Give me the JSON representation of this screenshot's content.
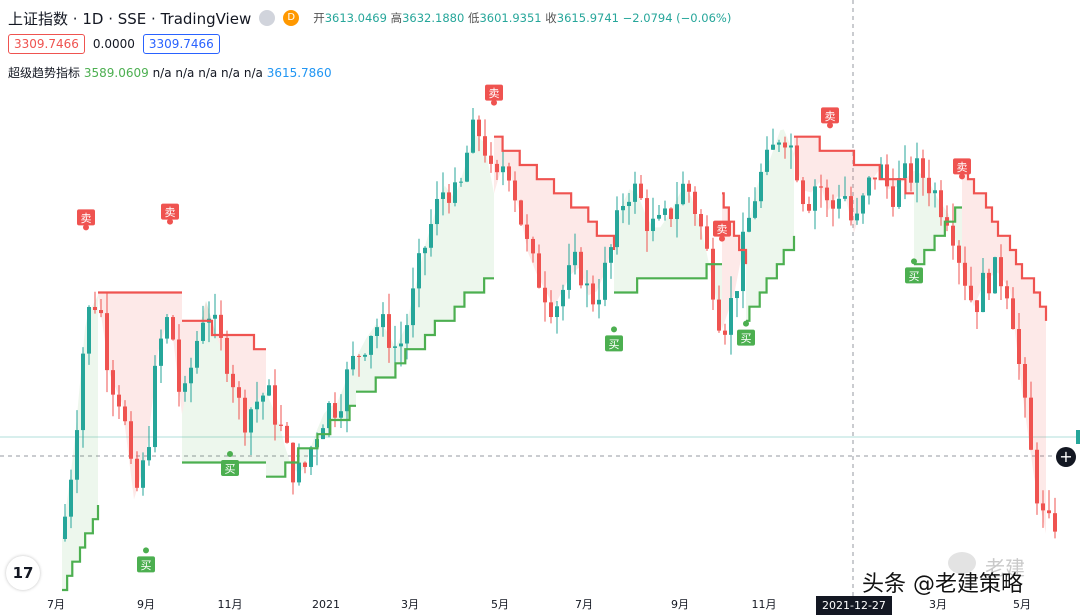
{
  "header": {
    "symbol": "上证指数",
    "interval": "1D",
    "exchange": "SSE",
    "source": "TradingView",
    "badge": "D",
    "open_label": "开",
    "open": "3613.0469",
    "high_label": "高",
    "high": "3632.1880",
    "low_label": "低",
    "low": "3601.9351",
    "close_label": "收",
    "close": "3615.9741",
    "change": "−2.0794 (−0.06%)"
  },
  "quote_row": {
    "bid": "3309.7466",
    "spread": "0.0000",
    "ask": "3309.7466"
  },
  "indicator": {
    "name": "超级趋势指标",
    "value": "3589.0609",
    "na_values": "n/a n/a n/a n/a n/a",
    "last": "3615.7860"
  },
  "crosshair_date": "2021-12-27",
  "logo_text": "17",
  "plus_symbol": "+",
  "watermark": {
    "text": "头条 @老建策略",
    "faded": "老建"
  },
  "colors": {
    "up": "#26a69a",
    "down": "#ef5350",
    "trend_up": "#4caf50",
    "trend_down": "#ef5350",
    "fill_up": "rgba(76,175,80,0.10)",
    "fill_down": "rgba(239,83,80,0.13)"
  },
  "chart_data": {
    "type": "candlestick",
    "x_ticks": [
      "7月",
      "9月",
      "11月",
      "2021",
      "3月",
      "5月",
      "7月",
      "9月",
      "11月",
      "3月",
      "5月"
    ],
    "price_path": [
      [
        0,
        2990
      ],
      [
        2,
        3150
      ],
      [
        4,
        3380
      ],
      [
        6,
        3420
      ],
      [
        8,
        3280
      ],
      [
        10,
        3230
      ],
      [
        12,
        3060
      ],
      [
        14,
        3130
      ],
      [
        16,
        3320
      ],
      [
        18,
        3390
      ],
      [
        20,
        3210
      ],
      [
        22,
        3320
      ],
      [
        24,
        3410
      ],
      [
        26,
        3340
      ],
      [
        28,
        3300
      ],
      [
        30,
        3200
      ],
      [
        32,
        3230
      ],
      [
        34,
        3250
      ],
      [
        36,
        3200
      ],
      [
        38,
        3120
      ],
      [
        40,
        3100
      ],
      [
        42,
        3170
      ],
      [
        44,
        3220
      ],
      [
        46,
        3230
      ],
      [
        48,
        3290
      ],
      [
        50,
        3330
      ],
      [
        52,
        3370
      ],
      [
        54,
        3360
      ],
      [
        56,
        3320
      ],
      [
        58,
        3390
      ],
      [
        60,
        3490
      ],
      [
        62,
        3560
      ],
      [
        64,
        3620
      ],
      [
        66,
        3580
      ],
      [
        68,
        3700
      ],
      [
        70,
        3710
      ],
      [
        72,
        3600
      ],
      [
        74,
        3670
      ],
      [
        76,
        3580
      ],
      [
        78,
        3480
      ],
      [
        80,
        3440
      ],
      [
        82,
        3400
      ],
      [
        84,
        3440
      ],
      [
        86,
        3480
      ],
      [
        88,
        3410
      ],
      [
        90,
        3440
      ],
      [
        92,
        3520
      ],
      [
        94,
        3610
      ],
      [
        96,
        3600
      ],
      [
        98,
        3540
      ],
      [
        100,
        3540
      ],
      [
        102,
        3580
      ],
      [
        104,
        3620
      ],
      [
        106,
        3560
      ],
      [
        108,
        3470
      ],
      [
        110,
        3360
      ],
      [
        112,
        3420
      ],
      [
        114,
        3530
      ],
      [
        116,
        3620
      ],
      [
        118,
        3660
      ],
      [
        120,
        3720
      ],
      [
        122,
        3670
      ],
      [
        124,
        3580
      ],
      [
        126,
        3630
      ],
      [
        128,
        3560
      ],
      [
        130,
        3620
      ],
      [
        132,
        3530
      ],
      [
        134,
        3600
      ],
      [
        136,
        3650
      ],
      [
        138,
        3600
      ],
      [
        140,
        3620
      ],
      [
        142,
        3640
      ],
      [
        144,
        3630
      ],
      [
        146,
        3590
      ],
      [
        148,
        3560
      ],
      [
        150,
        3470
      ],
      [
        152,
        3400
      ],
      [
        154,
        3450
      ],
      [
        156,
        3460
      ],
      [
        158,
        3430
      ],
      [
        160,
        3250
      ],
      [
        162,
        3100
      ],
      [
        164,
        3000
      ],
      [
        166,
        3030
      ]
    ],
    "supertrend": [
      {
        "from": 0,
        "to": 6,
        "dir": "up",
        "values": [
          2900,
          3040
        ]
      },
      {
        "from": 6,
        "to": 20,
        "dir": "down",
        "values": [
          3420,
          3420
        ]
      },
      {
        "from": 20,
        "to": 34,
        "dir": "down",
        "values": [
          3380,
          3330
        ]
      },
      {
        "from": 20,
        "to": 34,
        "dir": "up",
        "values": [
          3120,
          3120
        ]
      },
      {
        "from": 34,
        "to": 49,
        "dir": "up",
        "values": [
          3090,
          3230
        ]
      },
      {
        "from": 49,
        "to": 72,
        "dir": "up",
        "values": [
          3240,
          3460
        ]
      },
      {
        "from": 72,
        "to": 92,
        "dir": "down",
        "values": [
          3700,
          3510
        ]
      },
      {
        "from": 92,
        "to": 110,
        "dir": "up",
        "values": [
          3430,
          3470
        ]
      },
      {
        "from": 110,
        "to": 114,
        "dir": "down",
        "values": [
          3590,
          3480
        ]
      },
      {
        "from": 114,
        "to": 122,
        "dir": "up",
        "values": [
          3380,
          3520
        ]
      },
      {
        "from": 122,
        "to": 142,
        "dir": "down",
        "values": [
          3710,
          3600
        ]
      },
      {
        "from": 142,
        "to": 150,
        "dir": "up",
        "values": [
          3470,
          3580
        ]
      },
      {
        "from": 150,
        "to": 164,
        "dir": "down",
        "values": [
          3650,
          3380
        ]
      }
    ],
    "signals": [
      {
        "x": 4,
        "type": "sell",
        "label": "卖"
      },
      {
        "x": 18,
        "type": "sell",
        "label": "卖"
      },
      {
        "x": 14,
        "type": "buy",
        "label": "买"
      },
      {
        "x": 28,
        "type": "buy",
        "label": "买"
      },
      {
        "x": 72,
        "type": "sell",
        "label": "卖"
      },
      {
        "x": 92,
        "type": "buy",
        "label": "买"
      },
      {
        "x": 110,
        "type": "sell",
        "label": "卖"
      },
      {
        "x": 114,
        "type": "buy",
        "label": "买"
      },
      {
        "x": 128,
        "type": "sell",
        "label": "卖"
      },
      {
        "x": 142,
        "type": "buy",
        "label": "买"
      },
      {
        "x": 150,
        "type": "sell",
        "label": "卖"
      }
    ],
    "ylim": [
      2900,
      3800
    ]
  }
}
